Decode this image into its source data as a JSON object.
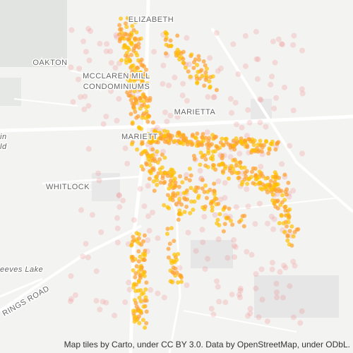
{
  "map": {
    "place_labels": [
      "ELIZABETH",
      "OAKTON",
      "MCCLAREN MILL",
      "CONDOMINIUMS",
      "MARIETTA",
      "MARIETT",
      "WHITLOCK",
      "eeves Lake",
      "RINGS ROAD",
      "in",
      "ld"
    ],
    "attribution": "Map tiles by Carto, under CC BY 3.0. Data by OpenStreetMap, under ODbL."
  }
}
